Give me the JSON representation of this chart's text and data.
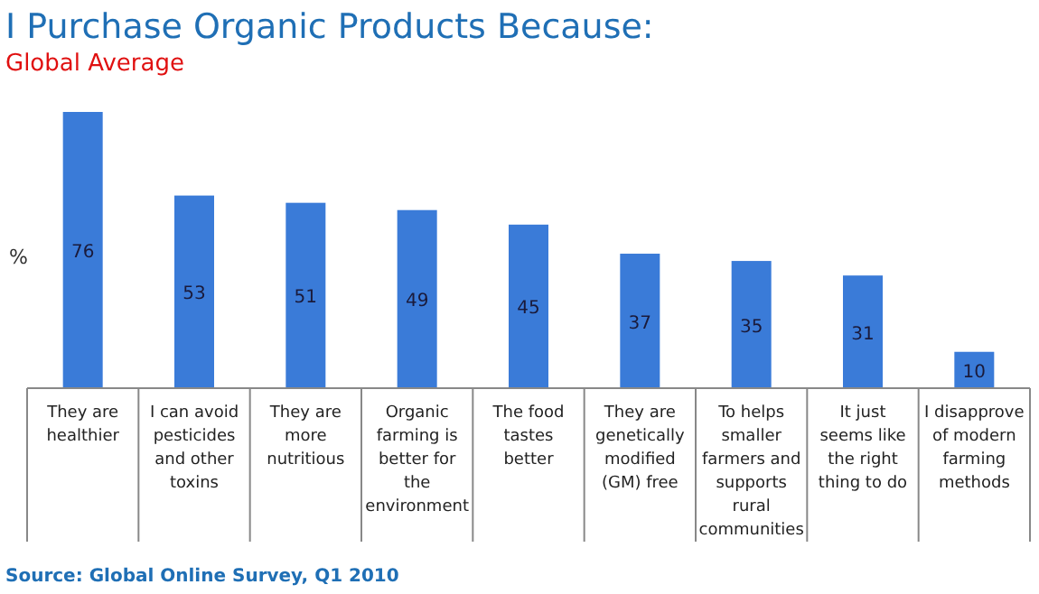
{
  "chart_data": {
    "type": "bar",
    "title": "I Purchase Organic Products Because:",
    "subtitle": "Global Average",
    "ylabel": "%",
    "categories": [
      "They are healthier",
      "I can avoid pesticides and other toxins",
      "They are more nutritious",
      "Organic farming is better for the environment",
      "The food tastes better",
      "They are genetically modified (GM) free",
      "To helps smaller farmers and supports rural communities",
      "It just seems like the right thing to do",
      "I disapprove of modern farming methods"
    ],
    "values": [
      76,
      53,
      51,
      49,
      45,
      37,
      35,
      31,
      10
    ],
    "color": "#3a7bd8",
    "data_labels": true,
    "annotations": [
      "Source: Global Online Survey, Q1 2010"
    ]
  }
}
